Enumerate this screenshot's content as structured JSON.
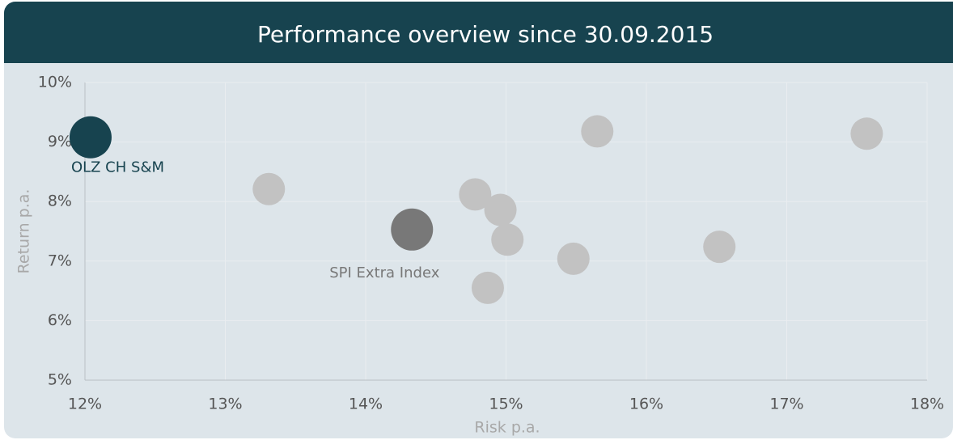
{
  "chart_data": {
    "type": "scatter",
    "title": "Performance overview since 30.09.2015",
    "x_label": "Risk p.a.",
    "y_label": "Return p.a.",
    "xlim": [
      12,
      18
    ],
    "ylim": [
      5,
      10
    ],
    "xticks": [
      {
        "value": 12,
        "label": "12%"
      },
      {
        "value": 13,
        "label": "13%"
      },
      {
        "value": 14,
        "label": "14%"
      },
      {
        "value": 15,
        "label": "15%"
      },
      {
        "value": 16,
        "label": "16%"
      },
      {
        "value": 17,
        "label": "17%"
      },
      {
        "value": 18,
        "label": "18%"
      }
    ],
    "yticks": [
      {
        "value": 5,
        "label": "5%"
      },
      {
        "value": 6,
        "label": "6%"
      },
      {
        "value": 7,
        "label": "7%"
      },
      {
        "value": 8,
        "label": "8%"
      },
      {
        "value": 9,
        "label": "9%"
      },
      {
        "value": 10,
        "label": "10%"
      }
    ],
    "grid": true,
    "series": [
      {
        "color": "#c2c2c2",
        "x": [
          13.31,
          14.78,
          14.96,
          15.01,
          14.87,
          15.48,
          15.65,
          16.52,
          17.57
        ],
        "values": [
          8.21,
          8.12,
          7.86,
          7.36,
          6.55,
          7.04,
          9.18,
          7.24,
          9.14
        ]
      },
      {
        "name": "SPI Extra Index",
        "color": "#787878",
        "x": [
          14.33
        ],
        "values": [
          7.53
        ]
      },
      {
        "name": "OLZ CH S&M",
        "color": "#17434f",
        "x": [
          12.04
        ],
        "values": [
          9.08
        ]
      }
    ]
  }
}
